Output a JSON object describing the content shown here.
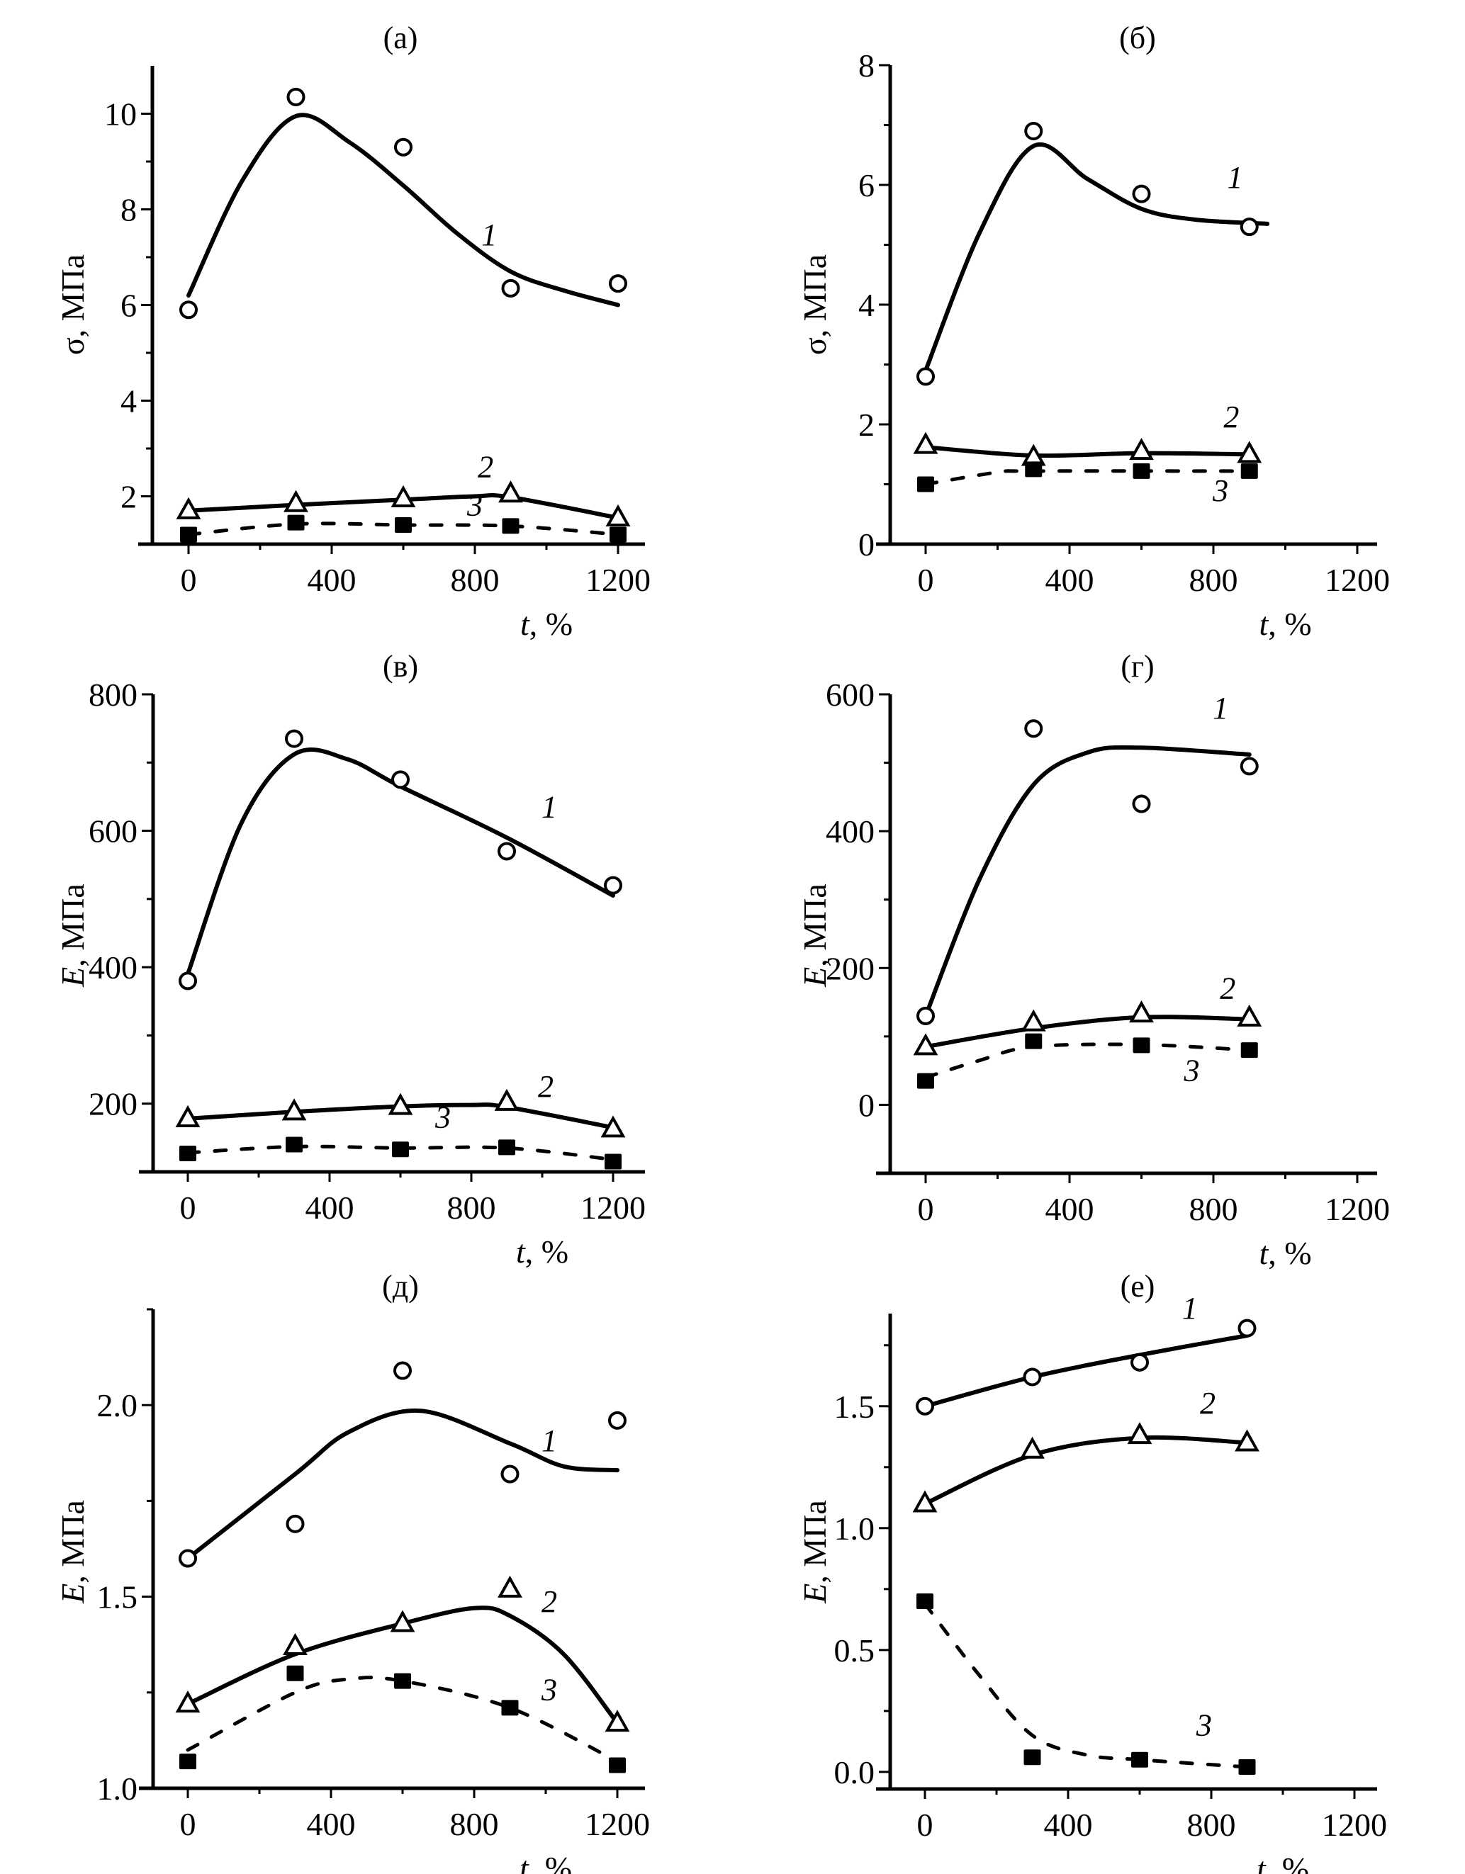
{
  "chart_data": [
    {
      "id": "a",
      "type": "line",
      "title": "(а)",
      "xlabel_var": "t",
      "xlabel_unit": ", %",
      "ylabel_var": "σ",
      "ylabel_unit": ", МПа",
      "ylabel_italic": false,
      "xlim": [
        -100,
        1250
      ],
      "ylim": [
        1.0,
        11.0
      ],
      "xticks": [
        "0",
        "400",
        "800",
        "1200"
      ],
      "xtick_values": [
        0,
        400,
        800,
        1200
      ],
      "xminor": [
        200,
        600,
        1000
      ],
      "yticks": [
        "2",
        "4",
        "6",
        "8",
        "10"
      ],
      "ytick_values": [
        2,
        4,
        6,
        8,
        10
      ],
      "yminor": [
        3,
        5,
        7,
        9
      ],
      "series": [
        {
          "name": "1",
          "marker": "circle",
          "dash": false,
          "x": [
            0,
            300,
            600,
            900,
            1200
          ],
          "y": [
            5.9,
            10.35,
            9.3,
            6.35,
            6.45
          ],
          "fit": [
            [
              0,
              6.2
            ],
            [
              150,
              8.6
            ],
            [
              300,
              9.95
            ],
            [
              450,
              9.4
            ],
            [
              600,
              8.5
            ],
            [
              750,
              7.5
            ],
            [
              900,
              6.7
            ],
            [
              1050,
              6.3
            ],
            [
              1200,
              6.0
            ]
          ],
          "label_at": [
            840,
            7.25
          ]
        },
        {
          "name": "2",
          "marker": "triangle",
          "dash": false,
          "x": [
            0,
            300,
            600,
            900,
            1200
          ],
          "y": [
            1.7,
            1.85,
            1.95,
            2.05,
            1.55
          ],
          "fit": [
            [
              0,
              1.7
            ],
            [
              300,
              1.82
            ],
            [
              600,
              1.93
            ],
            [
              800,
              2.0
            ],
            [
              900,
              1.98
            ],
            [
              1200,
              1.55
            ]
          ],
          "label_at": [
            830,
            2.4
          ]
        },
        {
          "name": "3",
          "marker": "square",
          "dash": true,
          "x": [
            0,
            300,
            600,
            900,
            1200
          ],
          "y": [
            1.2,
            1.45,
            1.4,
            1.38,
            1.2
          ],
          "fit": [
            [
              0,
              1.2
            ],
            [
              300,
              1.42
            ],
            [
              600,
              1.4
            ],
            [
              900,
              1.38
            ],
            [
              1200,
              1.2
            ]
          ],
          "label_at": [
            800,
            1.6
          ]
        }
      ]
    },
    {
      "id": "b",
      "type": "line",
      "title": "(б)",
      "xlabel_var": "t",
      "xlabel_unit": ", %",
      "ylabel_var": "σ",
      "ylabel_unit": ", МПа",
      "ylabel_italic": false,
      "xlim": [
        -100,
        1250
      ],
      "ylim": [
        0,
        8
      ],
      "xticks": [
        "0",
        "400",
        "800",
        "1200"
      ],
      "xtick_values": [
        0,
        400,
        800,
        1200
      ],
      "xminor": [
        200,
        600,
        1000
      ],
      "yticks": [
        "0",
        "2",
        "4",
        "6",
        "8"
      ],
      "ytick_values": [
        0,
        2,
        4,
        6,
        8
      ],
      "yminor": [
        1,
        3,
        5,
        7
      ],
      "series": [
        {
          "name": "1",
          "marker": "circle",
          "dash": false,
          "x": [
            0,
            300,
            600,
            900
          ],
          "y": [
            2.8,
            6.9,
            5.85,
            5.3
          ],
          "fit": [
            [
              0,
              2.9
            ],
            [
              150,
              5.2
            ],
            [
              300,
              6.65
            ],
            [
              450,
              6.1
            ],
            [
              600,
              5.6
            ],
            [
              750,
              5.42
            ],
            [
              950,
              5.35
            ]
          ],
          "label_at": [
            860,
            5.95
          ]
        },
        {
          "name": "2",
          "marker": "triangle",
          "dash": false,
          "x": [
            0,
            300,
            600,
            900
          ],
          "y": [
            1.65,
            1.45,
            1.55,
            1.5
          ],
          "fit": [
            [
              0,
              1.62
            ],
            [
              300,
              1.48
            ],
            [
              600,
              1.52
            ],
            [
              900,
              1.5
            ]
          ],
          "label_at": [
            850,
            1.95
          ]
        },
        {
          "name": "3",
          "marker": "square",
          "dash": true,
          "x": [
            0,
            300,
            600,
            900
          ],
          "y": [
            1.0,
            1.25,
            1.22,
            1.22
          ],
          "fit": [
            [
              0,
              1.0
            ],
            [
              200,
              1.2
            ],
            [
              300,
              1.22
            ],
            [
              900,
              1.22
            ]
          ],
          "label_at": [
            820,
            0.72
          ]
        }
      ]
    },
    {
      "id": "c",
      "type": "line",
      "title": "(в)",
      "xlabel_var": "t",
      "xlabel_unit": ", %",
      "ylabel_var": "E",
      "ylabel_unit": ", МПа",
      "ylabel_italic": true,
      "xlim": [
        -100,
        1250
      ],
      "ylim": [
        100,
        800
      ],
      "xticks": [
        "0",
        "400",
        "800",
        "1200"
      ],
      "xtick_values": [
        0,
        400,
        800,
        1200
      ],
      "xminor": [
        200,
        600,
        1000
      ],
      "yticks": [
        "200",
        "400",
        "600",
        "800"
      ],
      "ytick_values": [
        200,
        400,
        600,
        800
      ],
      "yminor": [
        300,
        500,
        700
      ],
      "series": [
        {
          "name": "1",
          "marker": "circle",
          "dash": false,
          "x": [
            0,
            300,
            600,
            900,
            1200
          ],
          "y": [
            380,
            735,
            675,
            570,
            520
          ],
          "fit": [
            [
              0,
              390
            ],
            [
              150,
              610
            ],
            [
              300,
              712
            ],
            [
              450,
              705
            ],
            [
              600,
              665
            ],
            [
              900,
              590
            ],
            [
              1200,
              505
            ]
          ],
          "label_at": [
            1020,
            620
          ]
        },
        {
          "name": "2",
          "marker": "triangle",
          "dash": false,
          "x": [
            0,
            300,
            600,
            900,
            1200
          ],
          "y": [
            178,
            188,
            196,
            202,
            163
          ],
          "fit": [
            [
              0,
              178
            ],
            [
              300,
              188
            ],
            [
              600,
              196
            ],
            [
              800,
              198
            ],
            [
              900,
              195
            ],
            [
              1200,
              165
            ]
          ],
          "label_at": [
            1010,
            210
          ]
        },
        {
          "name": "3",
          "marker": "square",
          "dash": true,
          "x": [
            0,
            300,
            600,
            900,
            1200
          ],
          "y": [
            127,
            140,
            133,
            136,
            115
          ],
          "fit": [
            [
              0,
              128
            ],
            [
              300,
              137
            ],
            [
              600,
              135
            ],
            [
              900,
              135
            ],
            [
              1200,
              118
            ]
          ],
          "label_at": [
            720,
            165
          ]
        }
      ]
    },
    {
      "id": "d",
      "type": "line",
      "title": "(г)",
      "xlabel_var": "t",
      "xlabel_unit": ", %",
      "ylabel_var": "E",
      "ylabel_unit": ", МПа",
      "ylabel_italic": true,
      "xlim": [
        -100,
        1250
      ],
      "ylim": [
        -100,
        600
      ],
      "xticks": [
        "0",
        "400",
        "800",
        "1200"
      ],
      "xtick_values": [
        0,
        400,
        800,
        1200
      ],
      "xminor": [
        200,
        600,
        1000
      ],
      "yticks": [
        "0",
        "200",
        "400",
        "600"
      ],
      "ytick_values": [
        0,
        200,
        400,
        600
      ],
      "yminor": [
        100,
        300,
        500
      ],
      "series": [
        {
          "name": "1",
          "marker": "circle",
          "dash": false,
          "x": [
            0,
            300,
            600,
            900
          ],
          "y": [
            130,
            550,
            440,
            495
          ],
          "fit": [
            [
              0,
              130
            ],
            [
              150,
              330
            ],
            [
              300,
              468
            ],
            [
              450,
              515
            ],
            [
              600,
              522
            ],
            [
              900,
              512
            ]
          ],
          "label_at": [
            820,
            565
          ]
        },
        {
          "name": "2",
          "marker": "triangle",
          "dash": false,
          "x": [
            0,
            300,
            600,
            900
          ],
          "y": [
            85,
            120,
            133,
            127
          ],
          "fit": [
            [
              0,
              85
            ],
            [
              300,
              112
            ],
            [
              600,
              128
            ],
            [
              900,
              125
            ]
          ],
          "label_at": [
            840,
            155
          ]
        },
        {
          "name": "3",
          "marker": "square",
          "dash": true,
          "x": [
            0,
            300,
            600,
            900
          ],
          "y": [
            35,
            93,
            87,
            80
          ],
          "fit": [
            [
              0,
              40
            ],
            [
              150,
              65
            ],
            [
              300,
              85
            ],
            [
              600,
              88
            ],
            [
              900,
              80
            ]
          ],
          "label_at": [
            740,
            35
          ]
        }
      ]
    },
    {
      "id": "e",
      "type": "line",
      "title": "(д)",
      "xlabel_var": "t",
      "xlabel_unit": ", %",
      "ylabel_var": "E",
      "ylabel_unit": ", МПа",
      "ylabel_italic": true,
      "xlim": [
        -100,
        1250
      ],
      "ylim": [
        1.0,
        2.25
      ],
      "xticks": [
        "0",
        "400",
        "800",
        "1200"
      ],
      "xtick_values": [
        0,
        400,
        800,
        1200
      ],
      "xminor": [
        200,
        600,
        1000
      ],
      "yticks": [
        "1.0",
        "1.5",
        "2.0"
      ],
      "ytick_values": [
        1.0,
        1.5,
        2.0
      ],
      "yminor": [
        1.25,
        1.75,
        2.25
      ],
      "series": [
        {
          "name": "1",
          "marker": "circle",
          "dash": false,
          "x": [
            0,
            300,
            600,
            900,
            1200
          ],
          "y": [
            1.6,
            1.69,
            2.09,
            1.82,
            1.96
          ],
          "fit": [
            [
              0,
              1.6
            ],
            [
              300,
              1.82
            ],
            [
              450,
              1.93
            ],
            [
              650,
              1.985
            ],
            [
              900,
              1.9
            ],
            [
              1050,
              1.84
            ],
            [
              1200,
              1.83
            ]
          ],
          "label_at": [
            1010,
            1.88
          ]
        },
        {
          "name": "2",
          "marker": "triangle",
          "dash": false,
          "x": [
            0,
            300,
            600,
            900,
            1200
          ],
          "y": [
            1.22,
            1.37,
            1.43,
            1.52,
            1.17
          ],
          "fit": [
            [
              0,
              1.22
            ],
            [
              300,
              1.35
            ],
            [
              600,
              1.43
            ],
            [
              800,
              1.47
            ],
            [
              900,
              1.45
            ],
            [
              1050,
              1.35
            ],
            [
              1200,
              1.17
            ]
          ],
          "label_at": [
            1010,
            1.46
          ]
        },
        {
          "name": "3",
          "marker": "square",
          "dash": true,
          "x": [
            0,
            300,
            600,
            900,
            1200
          ],
          "y": [
            1.07,
            1.3,
            1.28,
            1.21,
            1.06
          ],
          "fit": [
            [
              0,
              1.1
            ],
            [
              300,
              1.25
            ],
            [
              450,
              1.285
            ],
            [
              600,
              1.28
            ],
            [
              900,
              1.21
            ],
            [
              1200,
              1.07
            ]
          ],
          "label_at": [
            1010,
            1.23
          ]
        }
      ]
    },
    {
      "id": "f",
      "type": "line",
      "title": "(е)",
      "xlabel_var": "t",
      "xlabel_unit": ", %",
      "ylabel_var": "E",
      "ylabel_unit": ", МПа",
      "ylabel_italic": true,
      "xlim": [
        -100,
        1250
      ],
      "ylim": [
        -0.07,
        1.88
      ],
      "xticks": [
        "0",
        "400",
        "800",
        "1200"
      ],
      "xtick_values": [
        0,
        400,
        800,
        1200
      ],
      "xminor": [
        200,
        600,
        1000
      ],
      "yticks": [
        "0.0",
        "0.5",
        "1.0",
        "1.5"
      ],
      "ytick_values": [
        0.0,
        0.5,
        1.0,
        1.5
      ],
      "yminor": [
        0.25,
        0.75,
        1.25,
        1.75
      ],
      "series": [
        {
          "name": "1",
          "marker": "circle",
          "dash": false,
          "x": [
            0,
            300,
            600,
            900
          ],
          "y": [
            1.5,
            1.62,
            1.68,
            1.82
          ],
          "fit": [
            [
              0,
              1.5
            ],
            [
              300,
              1.62
            ],
            [
              600,
              1.71
            ],
            [
              900,
              1.79
            ]
          ],
          "label_at": [
            740,
            1.86
          ]
        },
        {
          "name": "2",
          "marker": "triangle",
          "dash": false,
          "x": [
            0,
            300,
            600,
            900
          ],
          "y": [
            1.1,
            1.32,
            1.38,
            1.35
          ],
          "fit": [
            [
              0,
              1.1
            ],
            [
              300,
              1.3
            ],
            [
              600,
              1.37
            ],
            [
              900,
              1.35
            ]
          ],
          "label_at": [
            790,
            1.47
          ]
        },
        {
          "name": "3",
          "marker": "square",
          "dash": true,
          "x": [
            0,
            300,
            600,
            900
          ],
          "y": [
            0.7,
            0.06,
            0.05,
            0.02
          ],
          "fit": [
            [
              0,
              0.69
            ],
            [
              150,
              0.4
            ],
            [
              300,
              0.15
            ],
            [
              450,
              0.07
            ],
            [
              600,
              0.05
            ],
            [
              900,
              0.02
            ]
          ],
          "label_at": [
            780,
            0.15
          ]
        }
      ]
    }
  ]
}
